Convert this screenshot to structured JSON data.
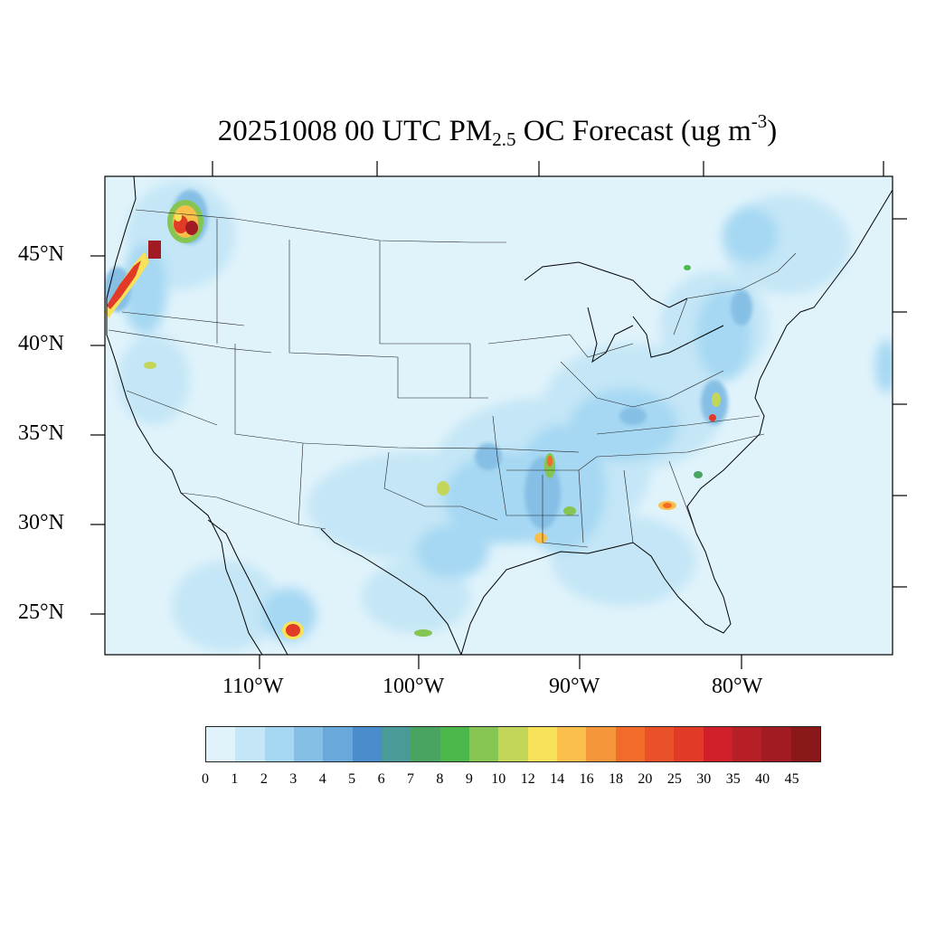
{
  "title": {
    "prefix": "20251008 00 UTC PM",
    "subscript": "2.5",
    "middle": " OC Forecast (ug m",
    "superscript": "-3",
    "suffix": ")"
  },
  "latitude_labels": [
    "45°N",
    "40°N",
    "35°N",
    "30°N",
    "25°N"
  ],
  "longitude_labels": [
    "110°W",
    "100°W",
    "90°W",
    "80°W"
  ],
  "colorbar": {
    "labels": [
      "0",
      "1",
      "2",
      "3",
      "4",
      "5",
      "6",
      "7",
      "8",
      "9",
      "10",
      "12",
      "14",
      "16",
      "18",
      "20",
      "25",
      "30",
      "35",
      "40",
      "45"
    ],
    "colors": [
      "#e0f3fb",
      "#c4e6f6",
      "#a6d8f3",
      "#86bfe5",
      "#68a8da",
      "#4a8ccc",
      "#4a9a9a",
      "#49a462",
      "#4cb84b",
      "#86c551",
      "#c4d65a",
      "#f7e25a",
      "#f9bf4a",
      "#f6963b",
      "#f26b2a",
      "#ea5128",
      "#e13a26",
      "#d11f2a",
      "#b71f26",
      "#a21b22",
      "#8b1818"
    ]
  }
}
